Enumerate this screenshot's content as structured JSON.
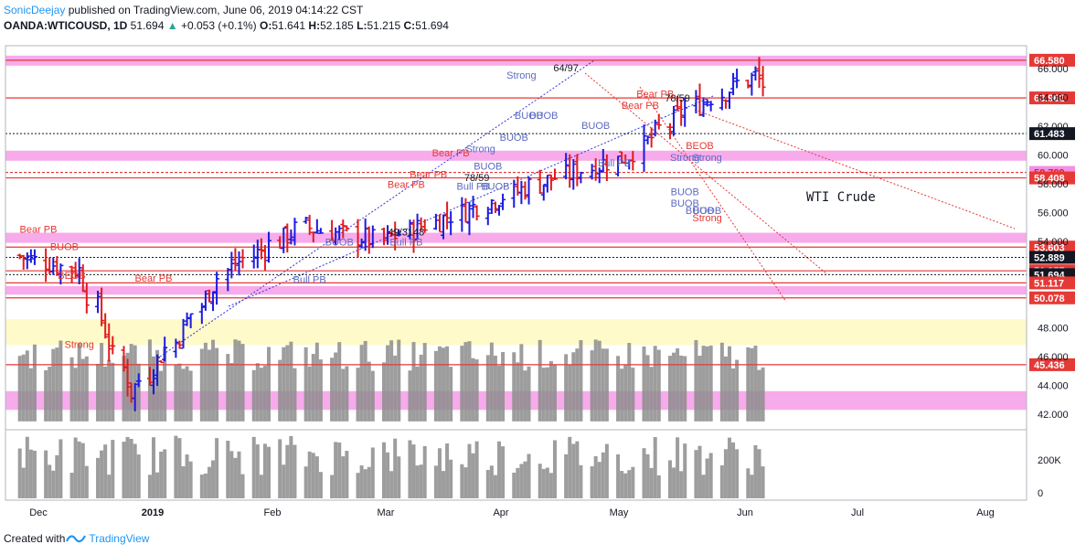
{
  "header": {
    "author": "SonicDeejay",
    "published": "published on TradingView.com, June 06, 2019 04:14:22 CST",
    "symbol": "OANDA:WTICOUSD, 1D",
    "last": "51.694",
    "change": "+0.053 (+0.1%)",
    "o_label": "O:",
    "o": "51.641",
    "h_label": "H:",
    "h": "52.185",
    "l_label": "L:",
    "l": "51.215",
    "c_label": "C:",
    "c": "51.694"
  },
  "footer": {
    "created_with": "Created with",
    "brand": "TradingView"
  },
  "colors": {
    "up": "#1a1adf",
    "down": "#e11b1b",
    "level": "#e53935",
    "zone": "#f48fe4",
    "yellow": "#fff9c4"
  },
  "chart_data": {
    "type": "ohlc",
    "title": "WTI Crude",
    "x_ticks": [
      "Dec",
      "2019",
      "Feb",
      "Mar",
      "Apr",
      "May",
      "Jun",
      "Jul",
      "Aug"
    ],
    "y_ticks": [
      "66.000",
      "64.000",
      "62.000",
      "60.000",
      "58.000",
      "56.000",
      "54.000",
      "48.000",
      "46.000",
      "44.000",
      "42.000"
    ],
    "volume_ticks": [
      "200K",
      "0"
    ],
    "price_labels": [
      {
        "text": "66.580",
        "value": 66.58,
        "style": "red"
      },
      {
        "text": "63.962",
        "value": 63.962,
        "style": "red"
      },
      {
        "text": "61.483",
        "value": 61.483,
        "style": "black"
      },
      {
        "text": "58.789",
        "value": 58.789,
        "style": "pink"
      },
      {
        "text": "58.408",
        "value": 58.408,
        "style": "red"
      },
      {
        "text": "53.603",
        "value": 53.603,
        "style": "red"
      },
      {
        "text": "52.889",
        "value": 52.889,
        "style": "black"
      },
      {
        "text": "51.957",
        "value": 51.957,
        "style": "red"
      },
      {
        "text": "51.694",
        "value": 51.694,
        "style": "black"
      },
      {
        "text": "51.117",
        "value": 51.117,
        "style": "red"
      },
      {
        "text": "50.078",
        "value": 50.078,
        "style": "red"
      },
      {
        "text": "45.436",
        "value": 45.436,
        "style": "red"
      }
    ],
    "annotations": [
      {
        "text": "Bear PB",
        "date": "2018-12-01",
        "value": 54.6,
        "color": "red"
      },
      {
        "text": "Bear PB",
        "date": "2019-01-01",
        "value": 51.2,
        "color": "red"
      },
      {
        "text": "Bull PB",
        "date": "2019-02-12",
        "value": 51.1,
        "color": "blue"
      },
      {
        "text": "Strong",
        "date": "2018-12-12",
        "value": 46.6,
        "color": "red"
      },
      {
        "text": "BUOB",
        "date": "2018-12-08",
        "value": 53.4,
        "color": "red"
      },
      {
        "text": "BEOB",
        "date": "2018-12-10",
        "value": 51.4,
        "color": "red"
      },
      {
        "text": "BUOB",
        "date": "2019-02-20",
        "value": 53.7,
        "color": "blue"
      },
      {
        "text": "Bull PB",
        "date": "2019-03-10",
        "value": 53.7,
        "color": "blue"
      },
      {
        "text": "49/3148",
        "date": "2019-03-10",
        "value": 54.4,
        "color": "black"
      },
      {
        "text": "Bear PB",
        "date": "2019-03-10",
        "value": 57.7,
        "color": "red"
      },
      {
        "text": "Bear PB",
        "date": "2019-03-22",
        "value": 59.9,
        "color": "red"
      },
      {
        "text": "Bear PB",
        "date": "2019-03-16",
        "value": 58.4,
        "color": "red"
      },
      {
        "text": "Strong",
        "date": "2019-03-30",
        "value": 60.2,
        "color": "blue"
      },
      {
        "text": "BUOB",
        "date": "2019-04-01",
        "value": 59.0,
        "color": "blue"
      },
      {
        "text": "Bull PB",
        "date": "2019-03-28",
        "value": 57.6,
        "color": "blue"
      },
      {
        "text": "78/59",
        "date": "2019-03-29",
        "value": 58.2,
        "color": "black"
      },
      {
        "text": "BUOB",
        "date": "2019-04-03",
        "value": 57.6,
        "color": "blue"
      },
      {
        "text": "Strong",
        "date": "2019-04-10",
        "value": 65.3,
        "color": "blue"
      },
      {
        "text": "BUOB",
        "date": "2019-04-12",
        "value": 62.5,
        "color": "blue"
      },
      {
        "text": "BUOB",
        "date": "2019-04-16",
        "value": 62.5,
        "color": "blue"
      },
      {
        "text": "BUOB",
        "date": "2019-04-08",
        "value": 61.0,
        "color": "blue"
      },
      {
        "text": "64/97",
        "date": "2019-04-22",
        "value": 65.8,
        "color": "black"
      },
      {
        "text": "BUOB",
        "date": "2019-04-30",
        "value": 61.8,
        "color": "blue"
      },
      {
        "text": "Bull PB",
        "date": "2019-05-05",
        "value": 59.2,
        "color": "blue"
      },
      {
        "text": "Bear PB",
        "date": "2019-05-16",
        "value": 64.0,
        "color": "red"
      },
      {
        "text": "Bear PB",
        "date": "2019-05-12",
        "value": 63.2,
        "color": "red"
      },
      {
        "text": "78/59",
        "date": "2019-05-22",
        "value": 63.7,
        "color": "black"
      },
      {
        "text": "BEOB",
        "date": "2019-05-28",
        "value": 60.4,
        "color": "red"
      },
      {
        "text": "Strong",
        "date": "2019-05-24",
        "value": 59.6,
        "color": "blue"
      },
      {
        "text": "Strong",
        "date": "2019-05-30",
        "value": 59.6,
        "color": "blue"
      },
      {
        "text": "BUOB",
        "date": "2019-05-24",
        "value": 57.2,
        "color": "blue"
      },
      {
        "text": "BUOB",
        "date": "2019-05-24",
        "value": 56.4,
        "color": "blue"
      },
      {
        "text": "BUOB",
        "date": "2019-05-28",
        "value": 55.9,
        "color": "blue"
      },
      {
        "text": "BUOB",
        "date": "2019-05-30",
        "value": 55.9,
        "color": "blue"
      },
      {
        "text": "Strong",
        "date": "2019-05-30",
        "value": 55.4,
        "color": "red"
      }
    ]
  }
}
